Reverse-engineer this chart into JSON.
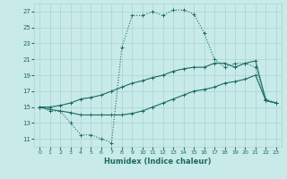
{
  "xlabel": "Humidex (Indice chaleur)",
  "xlim": [
    -0.5,
    23.5
  ],
  "ylim": [
    10,
    28
  ],
  "xticks": [
    0,
    1,
    2,
    3,
    4,
    5,
    6,
    7,
    8,
    9,
    10,
    11,
    12,
    13,
    14,
    15,
    16,
    17,
    18,
    19,
    20,
    21,
    22,
    23
  ],
  "yticks": [
    11,
    13,
    15,
    17,
    19,
    21,
    23,
    25,
    27
  ],
  "bg_color": "#c8eae8",
  "grid_color": "#a8d5d0",
  "line_color": "#1a6b60",
  "line1_x": [
    0,
    1,
    2,
    3,
    4,
    5,
    6,
    7,
    8,
    9,
    10,
    11,
    12,
    13,
    14,
    15,
    16,
    17,
    18,
    19,
    20,
    21,
    22,
    23
  ],
  "line1_y": [
    15,
    14.5,
    14.5,
    13,
    11.5,
    11.5,
    11,
    10.5,
    22.5,
    26.5,
    26.5,
    27,
    26.5,
    27.2,
    27.2,
    26.7,
    24.3,
    21,
    20,
    20.5,
    20.5,
    20,
    16,
    15.5
  ],
  "line2_x": [
    0,
    1,
    2,
    3,
    4,
    5,
    6,
    7,
    8,
    9,
    10,
    11,
    12,
    13,
    14,
    15,
    16,
    17,
    18,
    19,
    20,
    21,
    22,
    23
  ],
  "line2_y": [
    15,
    15,
    15.2,
    15.5,
    16,
    16.2,
    16.5,
    17,
    17.5,
    18,
    18.3,
    18.7,
    19,
    19.5,
    19.8,
    20,
    20,
    20.5,
    20.5,
    20,
    20.5,
    20.8,
    15.8,
    15.5
  ],
  "line3_x": [
    0,
    1,
    2,
    3,
    4,
    5,
    6,
    7,
    8,
    9,
    10,
    11,
    12,
    13,
    14,
    15,
    16,
    17,
    18,
    19,
    20,
    21,
    22,
    23
  ],
  "line3_y": [
    15,
    14.7,
    14.5,
    14.3,
    14,
    14,
    14,
    14,
    14,
    14.2,
    14.5,
    15,
    15.5,
    16,
    16.5,
    17,
    17.2,
    17.5,
    18,
    18.2,
    18.5,
    19,
    15.8,
    15.5
  ],
  "line1_style": "dotted",
  "line2_style": "solid",
  "line3_style": "solid"
}
